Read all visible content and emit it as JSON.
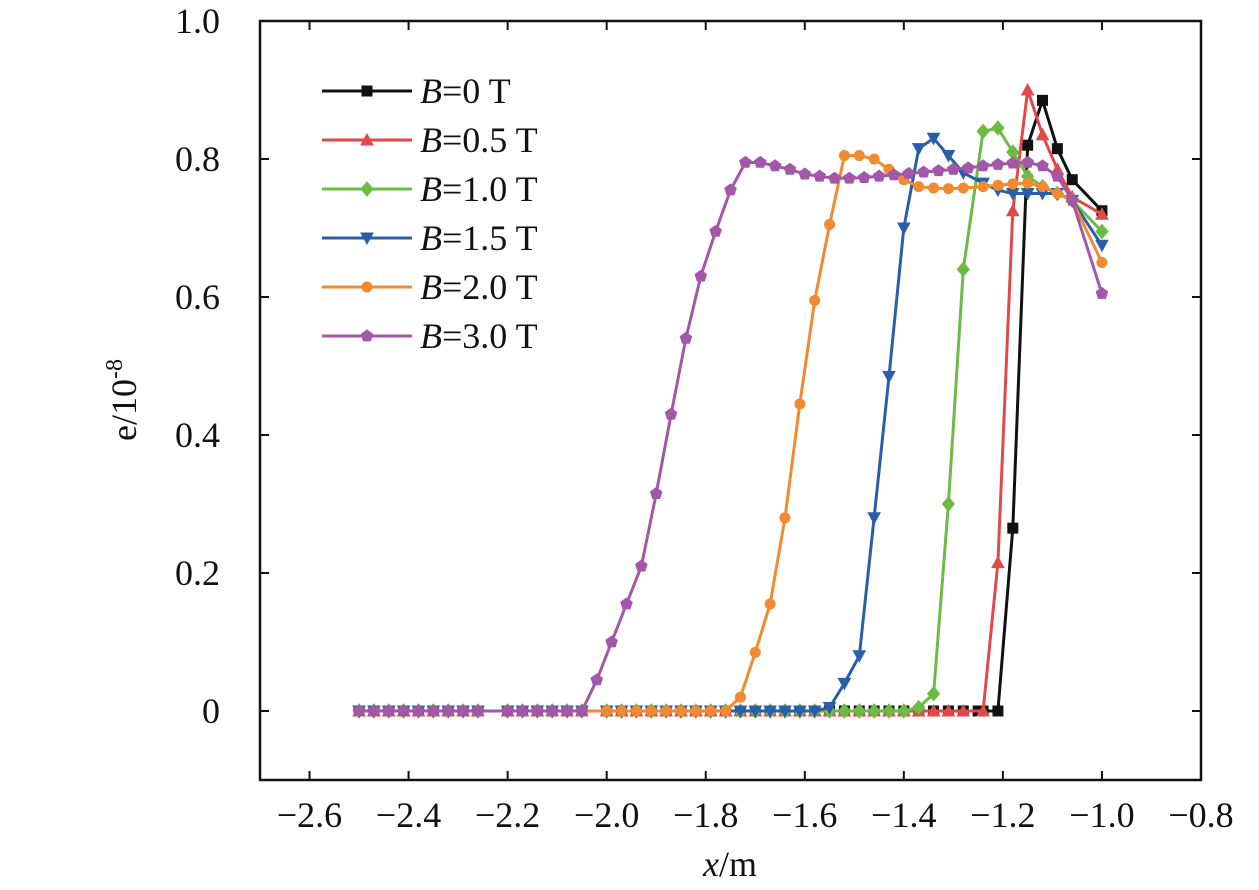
{
  "chart_data": {
    "type": "line",
    "xlabel": {
      "italic": "x",
      "rest": "/m"
    },
    "ylabel": {
      "base": "e/10",
      "sup": "-8"
    },
    "xlim": [
      -2.7,
      -0.8
    ],
    "ylim": [
      -0.1,
      1.0
    ],
    "xticks": [
      -2.6,
      -2.4,
      -2.2,
      -2.0,
      -1.8,
      -1.6,
      -1.4,
      -1.2,
      -1.0,
      -0.8
    ],
    "xtick_labels": [
      "−2.6",
      "−2.4",
      "−2.2",
      "−2.0",
      "−1.8",
      "−1.6",
      "−1.4",
      "−1.2",
      "−1.0",
      "−0.8"
    ],
    "yticks": [
      0,
      0.2,
      0.4,
      0.6,
      0.8,
      1.0
    ],
    "ytick_labels": [
      "0",
      "0.2",
      "0.4",
      "0.6",
      "0.8",
      "1.0"
    ],
    "legend_position": "top-left",
    "grid": false,
    "series": [
      {
        "name": "B=0 T",
        "var": "B",
        "label": "=0 T",
        "color": "#111111",
        "marker": "square",
        "points": [
          [
            -2.5,
            0
          ],
          [
            -2.47,
            0
          ],
          [
            -2.44,
            0
          ],
          [
            -2.41,
            0
          ],
          [
            -2.38,
            0
          ],
          [
            -2.35,
            0
          ],
          [
            -2.32,
            0
          ],
          [
            -2.29,
            0
          ],
          [
            -2.26,
            0
          ],
          [
            -2.2,
            0
          ],
          [
            -2.17,
            0
          ],
          [
            -2.14,
            0
          ],
          [
            -2.11,
            0
          ],
          [
            -2.08,
            0
          ],
          [
            -2.05,
            0
          ],
          [
            -2.0,
            0
          ],
          [
            -1.97,
            0
          ],
          [
            -1.94,
            0
          ],
          [
            -1.91,
            0
          ],
          [
            -1.88,
            0
          ],
          [
            -1.85,
            0
          ],
          [
            -1.82,
            0
          ],
          [
            -1.79,
            0
          ],
          [
            -1.76,
            0
          ],
          [
            -1.73,
            0
          ],
          [
            -1.7,
            0
          ],
          [
            -1.67,
            0
          ],
          [
            -1.64,
            0
          ],
          [
            -1.61,
            0
          ],
          [
            -1.58,
            0
          ],
          [
            -1.55,
            0
          ],
          [
            -1.52,
            0
          ],
          [
            -1.49,
            0
          ],
          [
            -1.46,
            0
          ],
          [
            -1.43,
            0
          ],
          [
            -1.4,
            0
          ],
          [
            -1.37,
            0
          ],
          [
            -1.34,
            0
          ],
          [
            -1.31,
            0
          ],
          [
            -1.28,
            0
          ],
          [
            -1.25,
            0
          ],
          [
            -1.24,
            0
          ],
          [
            -1.21,
            0
          ],
          [
            -1.18,
            0.265
          ],
          [
            -1.15,
            0.82
          ],
          [
            -1.12,
            0.885
          ],
          [
            -1.09,
            0.815
          ],
          [
            -1.06,
            0.77
          ],
          [
            -1.0,
            0.725
          ]
        ]
      },
      {
        "name": "B=0.5 T",
        "var": "B",
        "label": "=0.5 T",
        "color": "#e04a4a",
        "marker": "triangle-up",
        "points": [
          [
            -2.5,
            0
          ],
          [
            -2.47,
            0
          ],
          [
            -2.44,
            0
          ],
          [
            -2.41,
            0
          ],
          [
            -2.38,
            0
          ],
          [
            -2.35,
            0
          ],
          [
            -2.32,
            0
          ],
          [
            -2.29,
            0
          ],
          [
            -2.26,
            0
          ],
          [
            -2.2,
            0
          ],
          [
            -2.17,
            0
          ],
          [
            -2.14,
            0
          ],
          [
            -2.11,
            0
          ],
          [
            -2.08,
            0
          ],
          [
            -2.05,
            0
          ],
          [
            -2.0,
            0
          ],
          [
            -1.97,
            0
          ],
          [
            -1.94,
            0
          ],
          [
            -1.91,
            0
          ],
          [
            -1.88,
            0
          ],
          [
            -1.85,
            0
          ],
          [
            -1.82,
            0
          ],
          [
            -1.79,
            0
          ],
          [
            -1.76,
            0
          ],
          [
            -1.73,
            0
          ],
          [
            -1.7,
            0
          ],
          [
            -1.67,
            0
          ],
          [
            -1.64,
            0
          ],
          [
            -1.61,
            0
          ],
          [
            -1.58,
            0
          ],
          [
            -1.55,
            0
          ],
          [
            -1.52,
            0
          ],
          [
            -1.49,
            0
          ],
          [
            -1.46,
            0
          ],
          [
            -1.43,
            0
          ],
          [
            -1.4,
            0
          ],
          [
            -1.37,
            0
          ],
          [
            -1.34,
            0
          ],
          [
            -1.31,
            0
          ],
          [
            -1.28,
            0
          ],
          [
            -1.24,
            0
          ],
          [
            -1.21,
            0.215
          ],
          [
            -1.18,
            0.725
          ],
          [
            -1.15,
            0.9
          ],
          [
            -1.12,
            0.835
          ],
          [
            -1.09,
            0.785
          ],
          [
            -1.06,
            0.745
          ],
          [
            -1.0,
            0.72
          ]
        ]
      },
      {
        "name": "B=1.0 T",
        "var": "B",
        "label": "=1.0 T",
        "color": "#6cbb45",
        "marker": "diamond",
        "points": [
          [
            -2.5,
            0
          ],
          [
            -2.47,
            0
          ],
          [
            -2.44,
            0
          ],
          [
            -2.41,
            0
          ],
          [
            -2.38,
            0
          ],
          [
            -2.35,
            0
          ],
          [
            -2.32,
            0
          ],
          [
            -2.29,
            0
          ],
          [
            -2.26,
            0
          ],
          [
            -2.2,
            0
          ],
          [
            -2.17,
            0
          ],
          [
            -2.14,
            0
          ],
          [
            -2.11,
            0
          ],
          [
            -2.08,
            0
          ],
          [
            -2.05,
            0
          ],
          [
            -2.0,
            0
          ],
          [
            -1.97,
            0
          ],
          [
            -1.94,
            0
          ],
          [
            -1.91,
            0
          ],
          [
            -1.88,
            0
          ],
          [
            -1.85,
            0
          ],
          [
            -1.82,
            0
          ],
          [
            -1.79,
            0
          ],
          [
            -1.76,
            0
          ],
          [
            -1.73,
            0
          ],
          [
            -1.7,
            0
          ],
          [
            -1.67,
            0
          ],
          [
            -1.64,
            0
          ],
          [
            -1.61,
            0
          ],
          [
            -1.58,
            0
          ],
          [
            -1.55,
            0
          ],
          [
            -1.52,
            0
          ],
          [
            -1.49,
            0
          ],
          [
            -1.46,
            0
          ],
          [
            -1.43,
            0
          ],
          [
            -1.4,
            0
          ],
          [
            -1.37,
            0.005
          ],
          [
            -1.34,
            0.025
          ],
          [
            -1.31,
            0.3
          ],
          [
            -1.28,
            0.64
          ],
          [
            -1.24,
            0.84
          ],
          [
            -1.21,
            0.845
          ],
          [
            -1.18,
            0.81
          ],
          [
            -1.15,
            0.775
          ],
          [
            -1.12,
            0.76
          ],
          [
            -1.09,
            0.75
          ],
          [
            -1.06,
            0.74
          ],
          [
            -1.0,
            0.695
          ]
        ]
      },
      {
        "name": "B=1.5 T",
        "var": "B",
        "label": "=1.5 T",
        "color": "#2a5ea8",
        "marker": "triangle-down",
        "points": [
          [
            -2.5,
            0
          ],
          [
            -2.47,
            0
          ],
          [
            -2.44,
            0
          ],
          [
            -2.41,
            0
          ],
          [
            -2.38,
            0
          ],
          [
            -2.35,
            0
          ],
          [
            -2.32,
            0
          ],
          [
            -2.29,
            0
          ],
          [
            -2.26,
            0
          ],
          [
            -2.2,
            0
          ],
          [
            -2.17,
            0
          ],
          [
            -2.14,
            0
          ],
          [
            -2.11,
            0
          ],
          [
            -2.08,
            0
          ],
          [
            -2.05,
            0
          ],
          [
            -2.0,
            0
          ],
          [
            -1.97,
            0
          ],
          [
            -1.94,
            0
          ],
          [
            -1.91,
            0
          ],
          [
            -1.88,
            0
          ],
          [
            -1.85,
            0
          ],
          [
            -1.82,
            0
          ],
          [
            -1.79,
            0
          ],
          [
            -1.76,
            0
          ],
          [
            -1.73,
            0
          ],
          [
            -1.7,
            0
          ],
          [
            -1.67,
            0
          ],
          [
            -1.64,
            0
          ],
          [
            -1.61,
            0
          ],
          [
            -1.58,
            0
          ],
          [
            -1.55,
            0.005
          ],
          [
            -1.52,
            0.04
          ],
          [
            -1.49,
            0.08
          ],
          [
            -1.46,
            0.28
          ],
          [
            -1.43,
            0.485
          ],
          [
            -1.4,
            0.7
          ],
          [
            -1.37,
            0.815
          ],
          [
            -1.34,
            0.83
          ],
          [
            -1.31,
            0.805
          ],
          [
            -1.28,
            0.78
          ],
          [
            -1.24,
            0.765
          ],
          [
            -1.21,
            0.755
          ],
          [
            -1.18,
            0.75
          ],
          [
            -1.15,
            0.75
          ],
          [
            -1.12,
            0.75
          ],
          [
            -1.09,
            0.75
          ],
          [
            -1.06,
            0.74
          ],
          [
            -1.0,
            0.675
          ]
        ]
      },
      {
        "name": "B=2.0 T",
        "var": "B",
        "label": "=2.0 T",
        "color": "#f28a30",
        "marker": "circle",
        "points": [
          [
            -2.5,
            0
          ],
          [
            -2.47,
            0
          ],
          [
            -2.44,
            0
          ],
          [
            -2.41,
            0
          ],
          [
            -2.38,
            0
          ],
          [
            -2.35,
            0
          ],
          [
            -2.32,
            0
          ],
          [
            -2.29,
            0
          ],
          [
            -2.26,
            0
          ],
          [
            -2.2,
            0
          ],
          [
            -2.17,
            0
          ],
          [
            -2.14,
            0
          ],
          [
            -2.11,
            0
          ],
          [
            -2.08,
            0
          ],
          [
            -2.05,
            0
          ],
          [
            -2.0,
            0
          ],
          [
            -1.97,
            0
          ],
          [
            -1.94,
            0
          ],
          [
            -1.91,
            0
          ],
          [
            -1.88,
            0
          ],
          [
            -1.85,
            0
          ],
          [
            -1.82,
            0
          ],
          [
            -1.79,
            0
          ],
          [
            -1.76,
            0
          ],
          [
            -1.73,
            0.02
          ],
          [
            -1.7,
            0.085
          ],
          [
            -1.67,
            0.155
          ],
          [
            -1.64,
            0.28
          ],
          [
            -1.61,
            0.445
          ],
          [
            -1.58,
            0.595
          ],
          [
            -1.55,
            0.705
          ],
          [
            -1.52,
            0.805
          ],
          [
            -1.49,
            0.805
          ],
          [
            -1.46,
            0.8
          ],
          [
            -1.43,
            0.785
          ],
          [
            -1.4,
            0.77
          ],
          [
            -1.37,
            0.76
          ],
          [
            -1.34,
            0.758
          ],
          [
            -1.31,
            0.757
          ],
          [
            -1.28,
            0.758
          ],
          [
            -1.24,
            0.76
          ],
          [
            -1.21,
            0.762
          ],
          [
            -1.18,
            0.764
          ],
          [
            -1.15,
            0.765
          ],
          [
            -1.12,
            0.76
          ],
          [
            -1.09,
            0.75
          ],
          [
            -1.06,
            0.74
          ],
          [
            -1.0,
            0.65
          ]
        ]
      },
      {
        "name": "B=3.0 T",
        "var": "B",
        "label": "=3.0 T",
        "color": "#a357a8",
        "marker": "pentagon",
        "points": [
          [
            -2.5,
            0
          ],
          [
            -2.47,
            0
          ],
          [
            -2.44,
            0
          ],
          [
            -2.41,
            0
          ],
          [
            -2.38,
            0
          ],
          [
            -2.35,
            0
          ],
          [
            -2.32,
            0
          ],
          [
            -2.29,
            0
          ],
          [
            -2.26,
            0
          ],
          [
            -2.2,
            0
          ],
          [
            -2.17,
            0
          ],
          [
            -2.14,
            0
          ],
          [
            -2.11,
            0
          ],
          [
            -2.08,
            0
          ],
          [
            -2.05,
            0
          ],
          [
            -2.02,
            0.045
          ],
          [
            -1.99,
            0.1
          ],
          [
            -1.96,
            0.155
          ],
          [
            -1.93,
            0.21
          ],
          [
            -1.9,
            0.315
          ],
          [
            -1.87,
            0.43
          ],
          [
            -1.84,
            0.54
          ],
          [
            -1.81,
            0.63
          ],
          [
            -1.78,
            0.695
          ],
          [
            -1.75,
            0.755
          ],
          [
            -1.72,
            0.795
          ],
          [
            -1.69,
            0.795
          ],
          [
            -1.66,
            0.79
          ],
          [
            -1.63,
            0.785
          ],
          [
            -1.6,
            0.778
          ],
          [
            -1.57,
            0.775
          ],
          [
            -1.54,
            0.772
          ],
          [
            -1.51,
            0.772
          ],
          [
            -1.48,
            0.773
          ],
          [
            -1.45,
            0.775
          ],
          [
            -1.42,
            0.777
          ],
          [
            -1.39,
            0.779
          ],
          [
            -1.36,
            0.781
          ],
          [
            -1.33,
            0.783
          ],
          [
            -1.3,
            0.785
          ],
          [
            -1.27,
            0.787
          ],
          [
            -1.24,
            0.79
          ],
          [
            -1.21,
            0.792
          ],
          [
            -1.18,
            0.794
          ],
          [
            -1.15,
            0.795
          ],
          [
            -1.12,
            0.79
          ],
          [
            -1.09,
            0.775
          ],
          [
            -1.06,
            0.74
          ],
          [
            -1.0,
            0.605
          ]
        ]
      }
    ]
  }
}
